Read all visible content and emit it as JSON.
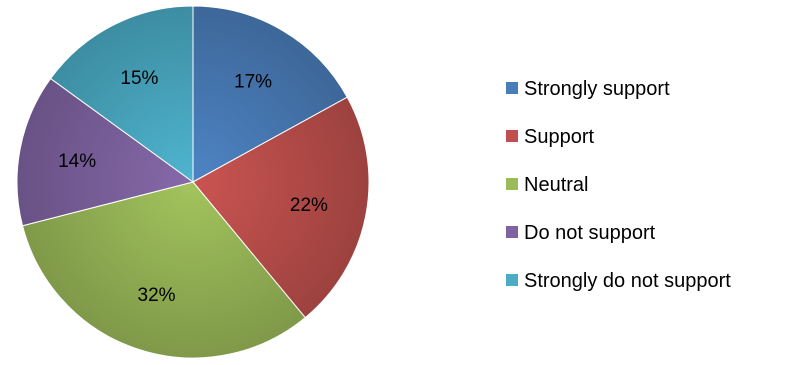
{
  "chart_data": {
    "type": "pie",
    "title": "",
    "legend_position": "right",
    "start_angle": "12 o'clock",
    "direction": "clockwise",
    "slices": [
      {
        "name": "Strongly support",
        "value": 17,
        "label": "17%",
        "color": "#4a7ebb"
      },
      {
        "name": "Support",
        "value": 22,
        "label": "22%",
        "color": "#c0504d"
      },
      {
        "name": "Neutral",
        "value": 32,
        "label": "32%",
        "color": "#9bbb59"
      },
      {
        "name": "Do not support",
        "value": 14,
        "label": "14%",
        "color": "#8064a2"
      },
      {
        "name": "Strongly do not support",
        "value": 15,
        "label": "15%",
        "color": "#4bacc6"
      }
    ]
  }
}
